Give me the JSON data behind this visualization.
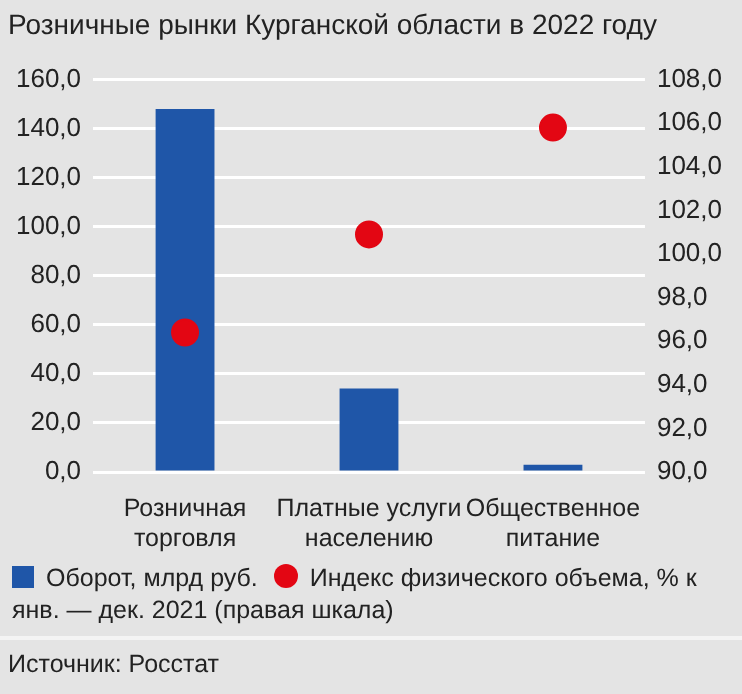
{
  "chart_data": {
    "type": "bar",
    "title": "Розничные рынки Курганской области в 2022 году",
    "categories": [
      "Розничная торговля",
      "Платные услуги населению",
      "Общественное питание"
    ],
    "series": [
      {
        "name": "Оборот, млрд руб.",
        "color": "#1f56a8",
        "values": [
          148,
          34,
          3
        ]
      },
      {
        "name": "Индекс физического объема, % к янв. — дек. 2021 (правая шкала)",
        "type": "scatter",
        "axis": "y2",
        "color": "#e30613",
        "marker": "circle",
        "x": [
          "Розничная торговля",
          "Платные услуги населению",
          "Общественное питание"
        ],
        "values": [
          96.4,
          100.9,
          105.8
        ]
      }
    ],
    "ylim": [
      0,
      160
    ],
    "yticks": [
      {
        "value": 0,
        "label": "0,0"
      },
      {
        "value": 20,
        "label": "20,0"
      },
      {
        "value": 40,
        "label": "40,0"
      },
      {
        "value": 60,
        "label": "60,0"
      },
      {
        "value": 80,
        "label": "80,0"
      },
      {
        "value": 100,
        "label": "100,0"
      },
      {
        "value": 120,
        "label": "120,0"
      },
      {
        "value": 140,
        "label": "140,0"
      },
      {
        "value": 160,
        "label": "160,0"
      }
    ],
    "y2lim": [
      90,
      108
    ],
    "y2ticks": [
      {
        "value": 90,
        "label": "90,0"
      },
      {
        "value": 92,
        "label": "92,0"
      },
      {
        "value": 94,
        "label": "94,0"
      },
      {
        "value": 96,
        "label": "96,0"
      },
      {
        "value": 98,
        "label": "98,0"
      },
      {
        "value": 100,
        "label": "100,0"
      },
      {
        "value": 102,
        "label": "102,0"
      },
      {
        "value": 104,
        "label": "104,0"
      },
      {
        "value": 106,
        "label": "106,0"
      },
      {
        "value": 108,
        "label": "108,0"
      }
    ],
    "grid": "y",
    "legend": "bottom",
    "annotations": [
      "Источник: Росстат"
    ]
  }
}
